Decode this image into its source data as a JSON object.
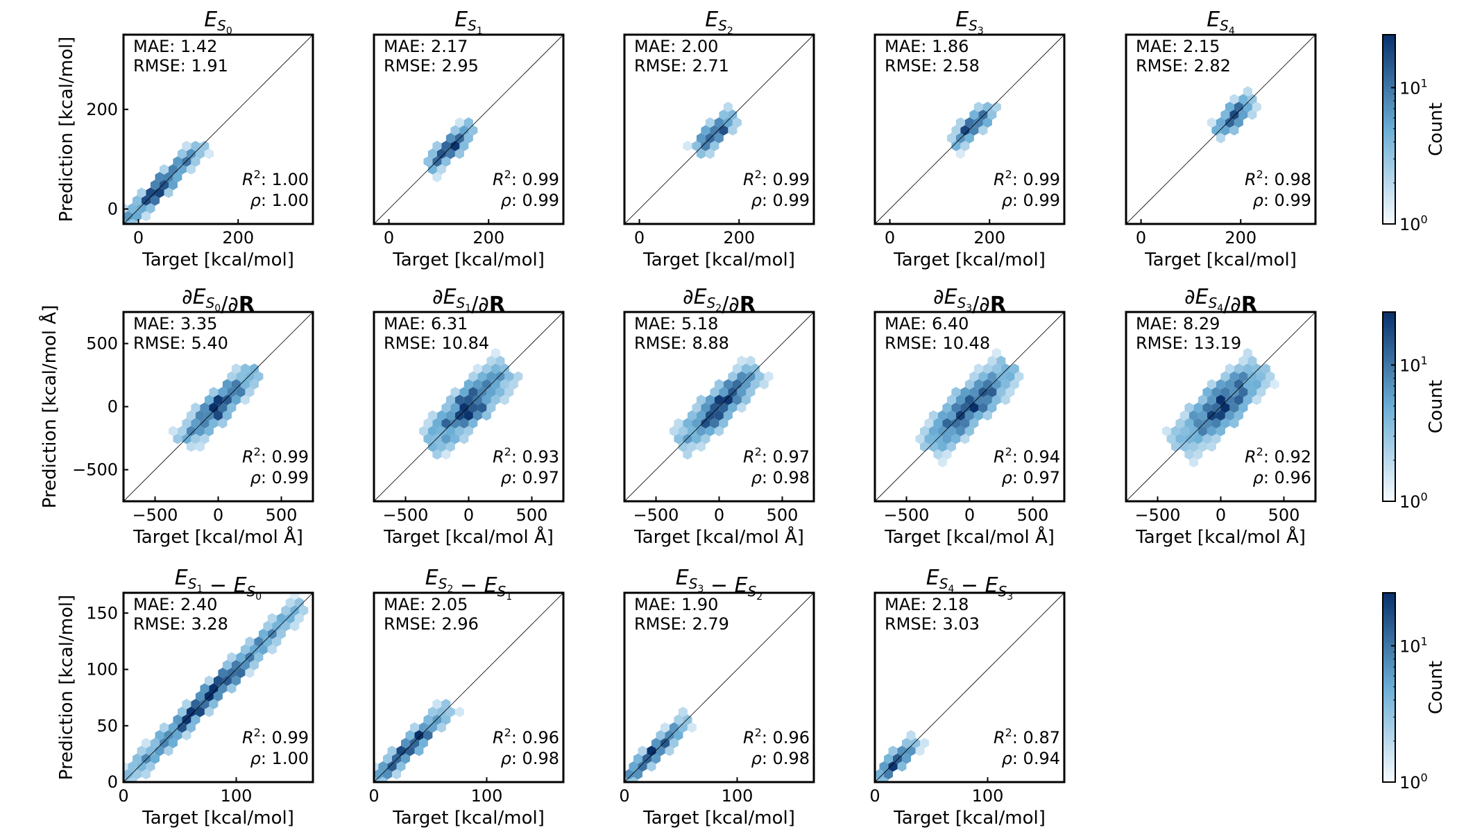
{
  "colors": {
    "low": "#f7fbff",
    "high": "#08306b",
    "diagonal": "#000000"
  },
  "colorbar": {
    "label": "Count",
    "tick_low": "10",
    "tick_low_exp": "0",
    "tick_high": "10",
    "tick_high_exp": "1",
    "scale": "log"
  },
  "stat_labels": {
    "mae": "MAE",
    "rmse": "RMSE",
    "r2": "R",
    "r2_exp": "2",
    "rho": "ρ"
  },
  "chart_data": [
    {
      "row": 0,
      "col": 0,
      "type": "hexbin",
      "title_parts": [
        {
          "t": "E",
          "i": true
        },
        {
          "t": "S",
          "i": true,
          "s": "sub"
        },
        {
          "t": "0",
          "s": "subsub"
        }
      ],
      "xlabel": "Target [kcal/mol]",
      "ylabel": "Prediction [kcal/mol]",
      "xlim": [
        -30,
        350
      ],
      "ylim": [
        -30,
        350
      ],
      "xticks": [
        {
          "v": 0,
          "t": "0"
        },
        {
          "v": 200,
          "t": "200"
        }
      ],
      "yticks": [
        {
          "v": 0,
          "t": "0"
        },
        {
          "v": 200,
          "t": "200"
        }
      ],
      "range": [
        -30,
        120
      ],
      "spread": 6,
      "mae": "1.42",
      "rmse": "1.91",
      "r2": "1.00",
      "rho": "1.00"
    },
    {
      "row": 0,
      "col": 1,
      "type": "hexbin",
      "title_parts": [
        {
          "t": "E",
          "i": true
        },
        {
          "t": "S",
          "i": true,
          "s": "sub"
        },
        {
          "t": "1",
          "s": "subsub"
        }
      ],
      "xlabel": "Target [kcal/mol]",
      "ylabel": "",
      "xlim": [
        -30,
        350
      ],
      "ylim": [
        -30,
        350
      ],
      "xticks": [
        {
          "v": 0,
          "t": "0"
        },
        {
          "v": 200,
          "t": "200"
        }
      ],
      "yticks": [],
      "range": [
        85,
        160
      ],
      "spread": 7,
      "mae": "2.17",
      "rmse": "2.95",
      "r2": "0.99",
      "rho": "0.99"
    },
    {
      "row": 0,
      "col": 2,
      "type": "hexbin",
      "title_parts": [
        {
          "t": "E",
          "i": true
        },
        {
          "t": "S",
          "i": true,
          "s": "sub"
        },
        {
          "t": "2",
          "s": "subsub"
        }
      ],
      "xlabel": "Target [kcal/mol]",
      "ylabel": "",
      "xlim": [
        -30,
        350
      ],
      "ylim": [
        -30,
        350
      ],
      "xticks": [
        {
          "v": 0,
          "t": "0"
        },
        {
          "v": 200,
          "t": "200"
        }
      ],
      "yticks": [],
      "range": [
        120,
        185
      ],
      "spread": 7,
      "mae": "2.00",
      "rmse": "2.71",
      "r2": "0.99",
      "rho": "0.99"
    },
    {
      "row": 0,
      "col": 3,
      "type": "hexbin",
      "title_parts": [
        {
          "t": "E",
          "i": true
        },
        {
          "t": "S",
          "i": true,
          "s": "sub"
        },
        {
          "t": "3",
          "s": "subsub"
        }
      ],
      "xlabel": "Target [kcal/mol]",
      "ylabel": "",
      "xlim": [
        -30,
        350
      ],
      "ylim": [
        -30,
        350
      ],
      "xticks": [
        {
          "v": 0,
          "t": "0"
        },
        {
          "v": 200,
          "t": "200"
        }
      ],
      "yticks": [],
      "range": [
        135,
        200
      ],
      "spread": 6,
      "mae": "1.86",
      "rmse": "2.58",
      "r2": "0.99",
      "rho": "0.99"
    },
    {
      "row": 0,
      "col": 4,
      "type": "hexbin",
      "title_parts": [
        {
          "t": "E",
          "i": true
        },
        {
          "t": "S",
          "i": true,
          "s": "sub"
        },
        {
          "t": "4",
          "s": "subsub"
        }
      ],
      "xlabel": "Target [kcal/mol]",
      "ylabel": "",
      "xlim": [
        -30,
        350
      ],
      "ylim": [
        -30,
        350
      ],
      "xticks": [
        {
          "v": 0,
          "t": "0"
        },
        {
          "v": 200,
          "t": "200"
        }
      ],
      "yticks": [],
      "range": [
        160,
        215
      ],
      "spread": 7,
      "mae": "2.15",
      "rmse": "2.82",
      "r2": "0.98",
      "rho": "0.99"
    },
    {
      "row": 1,
      "col": 0,
      "type": "hexbin",
      "title_parts": [
        {
          "t": "∂"
        },
        {
          "t": "E",
          "i": true
        },
        {
          "t": "S",
          "i": true,
          "s": "sub"
        },
        {
          "t": "0",
          "s": "subsub"
        },
        {
          "t": "/∂"
        },
        {
          "t": "R",
          "b": true
        }
      ],
      "xlabel": "Target [kcal/mol Å]",
      "ylabel": "Prediction [kcal/mol Å]",
      "xlim": [
        -750,
        750
      ],
      "ylim": [
        -750,
        750
      ],
      "xticks": [
        {
          "v": -500,
          "t": "−500"
        },
        {
          "v": 0,
          "t": "0"
        },
        {
          "v": 500,
          "t": "500"
        }
      ],
      "yticks": [
        {
          "v": -500,
          "t": "−500"
        },
        {
          "v": 0,
          "t": "0"
        },
        {
          "v": 500,
          "t": "500"
        }
      ],
      "range": [
        -250,
        260
      ],
      "spread": 45,
      "mae": "3.35",
      "rmse": "5.40",
      "r2": "0.99",
      "rho": "0.99"
    },
    {
      "row": 1,
      "col": 1,
      "type": "hexbin",
      "title_parts": [
        {
          "t": "∂"
        },
        {
          "t": "E",
          "i": true
        },
        {
          "t": "S",
          "i": true,
          "s": "sub"
        },
        {
          "t": "1",
          "s": "subsub"
        },
        {
          "t": "/∂"
        },
        {
          "t": "R",
          "b": true
        }
      ],
      "xlabel": "Target [kcal/mol Å]",
      "ylabel": "",
      "xlim": [
        -750,
        750
      ],
      "ylim": [
        -750,
        750
      ],
      "xticks": [
        {
          "v": -500,
          "t": "−500"
        },
        {
          "v": 0,
          "t": "0"
        },
        {
          "v": 500,
          "t": "500"
        }
      ],
      "yticks": [],
      "range": [
        -280,
        280
      ],
      "spread": 70,
      "mae": "6.31",
      "rmse": "10.84",
      "r2": "0.93",
      "rho": "0.97"
    },
    {
      "row": 1,
      "col": 2,
      "type": "hexbin",
      "title_parts": [
        {
          "t": "∂"
        },
        {
          "t": "E",
          "i": true
        },
        {
          "t": "S",
          "i": true,
          "s": "sub"
        },
        {
          "t": "2",
          "s": "subsub"
        },
        {
          "t": "/∂"
        },
        {
          "t": "R",
          "b": true
        }
      ],
      "xlabel": "Target [kcal/mol Å]",
      "ylabel": "",
      "xlim": [
        -750,
        750
      ],
      "ylim": [
        -750,
        750
      ],
      "xticks": [
        {
          "v": -500,
          "t": "−500"
        },
        {
          "v": 0,
          "t": "0"
        },
        {
          "v": 500,
          "t": "500"
        }
      ],
      "yticks": [],
      "range": [
        -280,
        280
      ],
      "spread": 55,
      "mae": "5.18",
      "rmse": "8.88",
      "r2": "0.97",
      "rho": "0.98"
    },
    {
      "row": 1,
      "col": 3,
      "type": "hexbin",
      "title_parts": [
        {
          "t": "∂"
        },
        {
          "t": "E",
          "i": true
        },
        {
          "t": "S",
          "i": true,
          "s": "sub"
        },
        {
          "t": "3",
          "s": "subsub"
        },
        {
          "t": "/∂"
        },
        {
          "t": "R",
          "b": true
        }
      ],
      "xlabel": "Target [kcal/mol Å]",
      "ylabel": "",
      "xlim": [
        -750,
        750
      ],
      "ylim": [
        -750,
        750
      ],
      "xticks": [
        {
          "v": -500,
          "t": "−500"
        },
        {
          "v": 0,
          "t": "0"
        },
        {
          "v": 500,
          "t": "500"
        }
      ],
      "yticks": [],
      "range": [
        -300,
        300
      ],
      "spread": 70,
      "mae": "6.40",
      "rmse": "10.48",
      "r2": "0.94",
      "rho": "0.97"
    },
    {
      "row": 1,
      "col": 4,
      "type": "hexbin",
      "title_parts": [
        {
          "t": "∂"
        },
        {
          "t": "E",
          "i": true
        },
        {
          "t": "S",
          "i": true,
          "s": "sub"
        },
        {
          "t": "4",
          "s": "subsub"
        },
        {
          "t": "/∂"
        },
        {
          "t": "R",
          "b": true
        }
      ],
      "xlabel": "Target [kcal/mol Å]",
      "ylabel": "",
      "xlim": [
        -750,
        750
      ],
      "ylim": [
        -750,
        750
      ],
      "xticks": [
        {
          "v": -500,
          "t": "−500"
        },
        {
          "v": 0,
          "t": "0"
        },
        {
          "v": 500,
          "t": "500"
        }
      ],
      "yticks": [],
      "range": [
        -300,
        300
      ],
      "spread": 80,
      "mae": "8.29",
      "rmse": "13.19",
      "r2": "0.92",
      "rho": "0.96"
    },
    {
      "row": 2,
      "col": 0,
      "type": "hexbin",
      "title_parts": [
        {
          "t": "E",
          "i": true
        },
        {
          "t": "S",
          "i": true,
          "s": "sub"
        },
        {
          "t": "1",
          "s": "subsub"
        },
        {
          "t": " − "
        },
        {
          "t": "E",
          "i": true
        },
        {
          "t": "S",
          "i": true,
          "s": "sub"
        },
        {
          "t": "0",
          "s": "subsub"
        }
      ],
      "xlabel": "Target [kcal/mol]",
      "ylabel": "Prediction [kcal/mol]",
      "xlim": [
        0,
        168
      ],
      "ylim": [
        0,
        168
      ],
      "xticks": [
        {
          "v": 0,
          "t": "0"
        },
        {
          "v": 100,
          "t": "100"
        }
      ],
      "yticks": [
        {
          "v": 0,
          "t": "0"
        },
        {
          "v": 50,
          "t": "50"
        },
        {
          "v": 100,
          "t": "100"
        },
        {
          "v": 150,
          "t": "150"
        }
      ],
      "range": [
        0,
        155
      ],
      "spread": 3,
      "mae": "2.40",
      "rmse": "3.28",
      "r2": "0.99",
      "rho": "1.00"
    },
    {
      "row": 2,
      "col": 1,
      "type": "hexbin",
      "title_parts": [
        {
          "t": "E",
          "i": true
        },
        {
          "t": "S",
          "i": true,
          "s": "sub"
        },
        {
          "t": "2",
          "s": "subsub"
        },
        {
          "t": " − "
        },
        {
          "t": "E",
          "i": true
        },
        {
          "t": "S",
          "i": true,
          "s": "sub"
        },
        {
          "t": "1",
          "s": "subsub"
        }
      ],
      "xlabel": "Target [kcal/mol]",
      "ylabel": "",
      "xlim": [
        0,
        168
      ],
      "ylim": [
        0,
        168
      ],
      "xticks": [
        {
          "v": 0,
          "t": "0"
        },
        {
          "v": 100,
          "t": "100"
        }
      ],
      "yticks": [],
      "range": [
        0,
        65
      ],
      "spread": 2.5,
      "mae": "2.05",
      "rmse": "2.96",
      "r2": "0.96",
      "rho": "0.98"
    },
    {
      "row": 2,
      "col": 2,
      "type": "hexbin",
      "title_parts": [
        {
          "t": "E",
          "i": true
        },
        {
          "t": "S",
          "i": true,
          "s": "sub"
        },
        {
          "t": "3",
          "s": "subsub"
        },
        {
          "t": " − "
        },
        {
          "t": "E",
          "i": true
        },
        {
          "t": "S",
          "i": true,
          "s": "sub"
        },
        {
          "t": "2",
          "s": "subsub"
        }
      ],
      "xlabel": "Target [kcal/mol]",
      "ylabel": "",
      "xlim": [
        0,
        168
      ],
      "ylim": [
        0,
        168
      ],
      "xticks": [
        {
          "v": 0,
          "t": "0"
        },
        {
          "v": 100,
          "t": "100"
        }
      ],
      "yticks": [],
      "range": [
        0,
        55
      ],
      "spread": 2,
      "mae": "1.90",
      "rmse": "2.79",
      "r2": "0.96",
      "rho": "0.98"
    },
    {
      "row": 2,
      "col": 3,
      "type": "hexbin",
      "title_parts": [
        {
          "t": "E",
          "i": true
        },
        {
          "t": "S",
          "i": true,
          "s": "sub"
        },
        {
          "t": "4",
          "s": "subsub"
        },
        {
          "t": " − "
        },
        {
          "t": "E",
          "i": true
        },
        {
          "t": "S",
          "i": true,
          "s": "sub"
        },
        {
          "t": "3",
          "s": "subsub"
        }
      ],
      "xlabel": "Target [kcal/mol]",
      "ylabel": "",
      "xlim": [
        0,
        168
      ],
      "ylim": [
        0,
        168
      ],
      "xticks": [
        {
          "v": 0,
          "t": "0"
        },
        {
          "v": 100,
          "t": "100"
        }
      ],
      "yticks": [],
      "range": [
        0,
        35
      ],
      "spread": 2,
      "mae": "2.18",
      "rmse": "3.03",
      "r2": "0.87",
      "rho": "0.94"
    }
  ]
}
